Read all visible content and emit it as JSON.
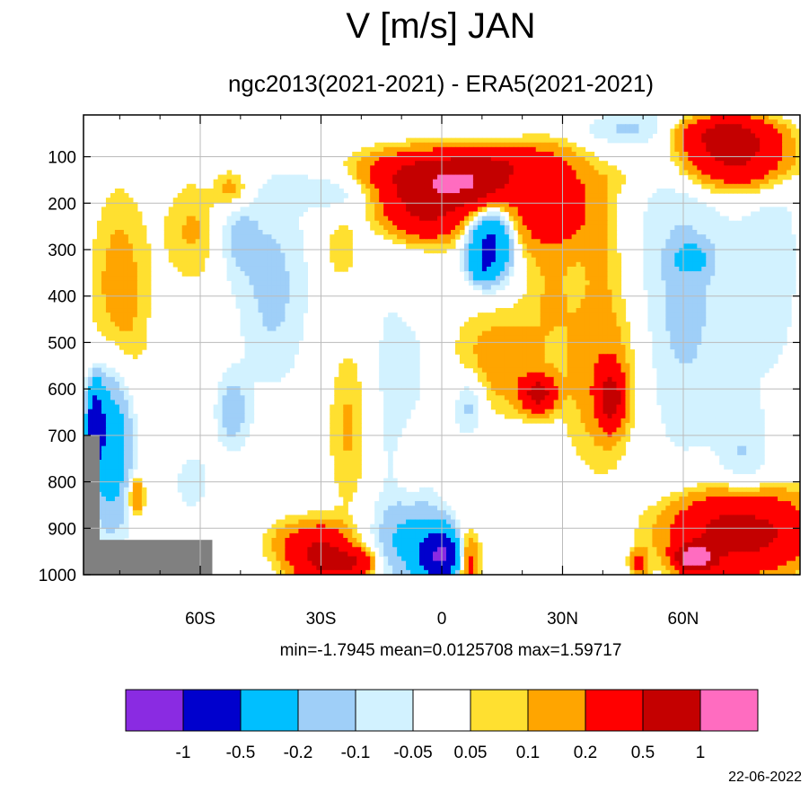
{
  "chart_data": {
    "type": "heatmap",
    "title": "V [m/s] JAN",
    "subtitle": "ngc2013(2021-2021) - ERA5(2021-2021)",
    "xlabel": "",
    "ylabel": "",
    "x_ticks": [
      {
        "value": -60,
        "label": "60S"
      },
      {
        "value": -30,
        "label": "30S"
      },
      {
        "value": 0,
        "label": "0"
      },
      {
        "value": 30,
        "label": "30N"
      },
      {
        "value": 60,
        "label": "60N"
      }
    ],
    "y_ticks": [
      100,
      200,
      300,
      400,
      500,
      600,
      700,
      800,
      900,
      1000
    ],
    "xlim": [
      -89,
      89
    ],
    "ylim": [
      1000,
      10
    ],
    "grid": true,
    "stats": {
      "text": "min=-1.7945   mean=0.0125708   max=1.59717"
    },
    "colorbar": {
      "colors": [
        "#8a2be2",
        "#0000cd",
        "#00bfff",
        "#9fcff8",
        "#d2f2ff",
        "#ffffff",
        "#ffe030",
        "#ffa500",
        "#ff0000",
        "#c40000",
        "#ff6cc0"
      ],
      "labels": [
        "-1",
        "-0.5",
        "-0.2",
        "-0.1",
        "-0.05",
        "0.05",
        "0.1",
        "0.2",
        "0.5",
        "1"
      ]
    },
    "missing_color": "#808080",
    "date": "22-06-2022"
  }
}
